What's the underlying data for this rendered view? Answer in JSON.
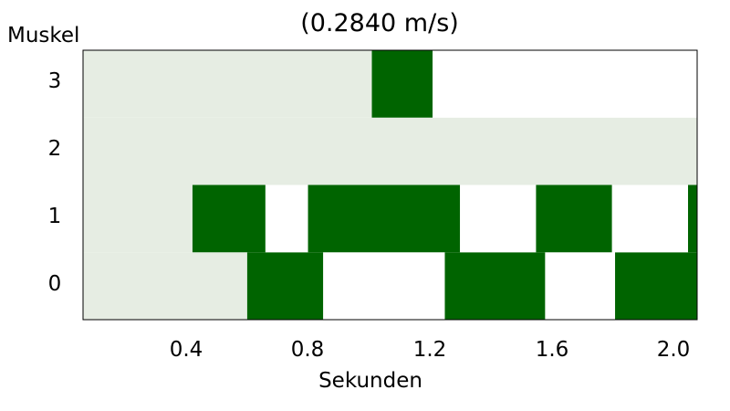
{
  "chart_data": {
    "type": "heatmap",
    "title": "(0.2840 m/s)",
    "xlabel": "Sekunden",
    "ylabel": "Muskel",
    "xlim": [
      0.04,
      2.06
    ],
    "x_ticks": [
      "0.4",
      "0.8",
      "1.2",
      "1.6",
      "2.0"
    ],
    "x_tick_values": [
      0.4,
      0.8,
      1.2,
      1.6,
      2.0
    ],
    "y_ticks": [
      "0",
      "1",
      "2",
      "3"
    ],
    "states": {
      "inactive": "#e6ede3",
      "active": "#006400",
      "off": "#ffffff"
    },
    "rows": [
      {
        "muscle": 0,
        "segments": [
          {
            "start": 0.04,
            "end": 0.58,
            "state": "inactive"
          },
          {
            "start": 0.58,
            "end": 0.83,
            "state": "active"
          },
          {
            "start": 0.83,
            "end": 1.23,
            "state": "off"
          },
          {
            "start": 1.23,
            "end": 1.56,
            "state": "active"
          },
          {
            "start": 1.56,
            "end": 1.79,
            "state": "off"
          },
          {
            "start": 1.79,
            "end": 2.06,
            "state": "active"
          }
        ]
      },
      {
        "muscle": 1,
        "segments": [
          {
            "start": 0.04,
            "end": 0.4,
            "state": "inactive"
          },
          {
            "start": 0.4,
            "end": 0.64,
            "state": "active"
          },
          {
            "start": 0.64,
            "end": 0.78,
            "state": "off"
          },
          {
            "start": 0.78,
            "end": 1.28,
            "state": "active"
          },
          {
            "start": 1.28,
            "end": 1.53,
            "state": "off"
          },
          {
            "start": 1.53,
            "end": 1.78,
            "state": "active"
          },
          {
            "start": 1.78,
            "end": 2.03,
            "state": "off"
          },
          {
            "start": 2.03,
            "end": 2.06,
            "state": "active"
          }
        ]
      },
      {
        "muscle": 2,
        "segments": [
          {
            "start": 0.04,
            "end": 2.06,
            "state": "inactive"
          }
        ]
      },
      {
        "muscle": 3,
        "segments": [
          {
            "start": 0.04,
            "end": 0.99,
            "state": "inactive"
          },
          {
            "start": 0.99,
            "end": 1.19,
            "state": "active"
          },
          {
            "start": 1.19,
            "end": 2.06,
            "state": "off"
          }
        ]
      }
    ]
  }
}
